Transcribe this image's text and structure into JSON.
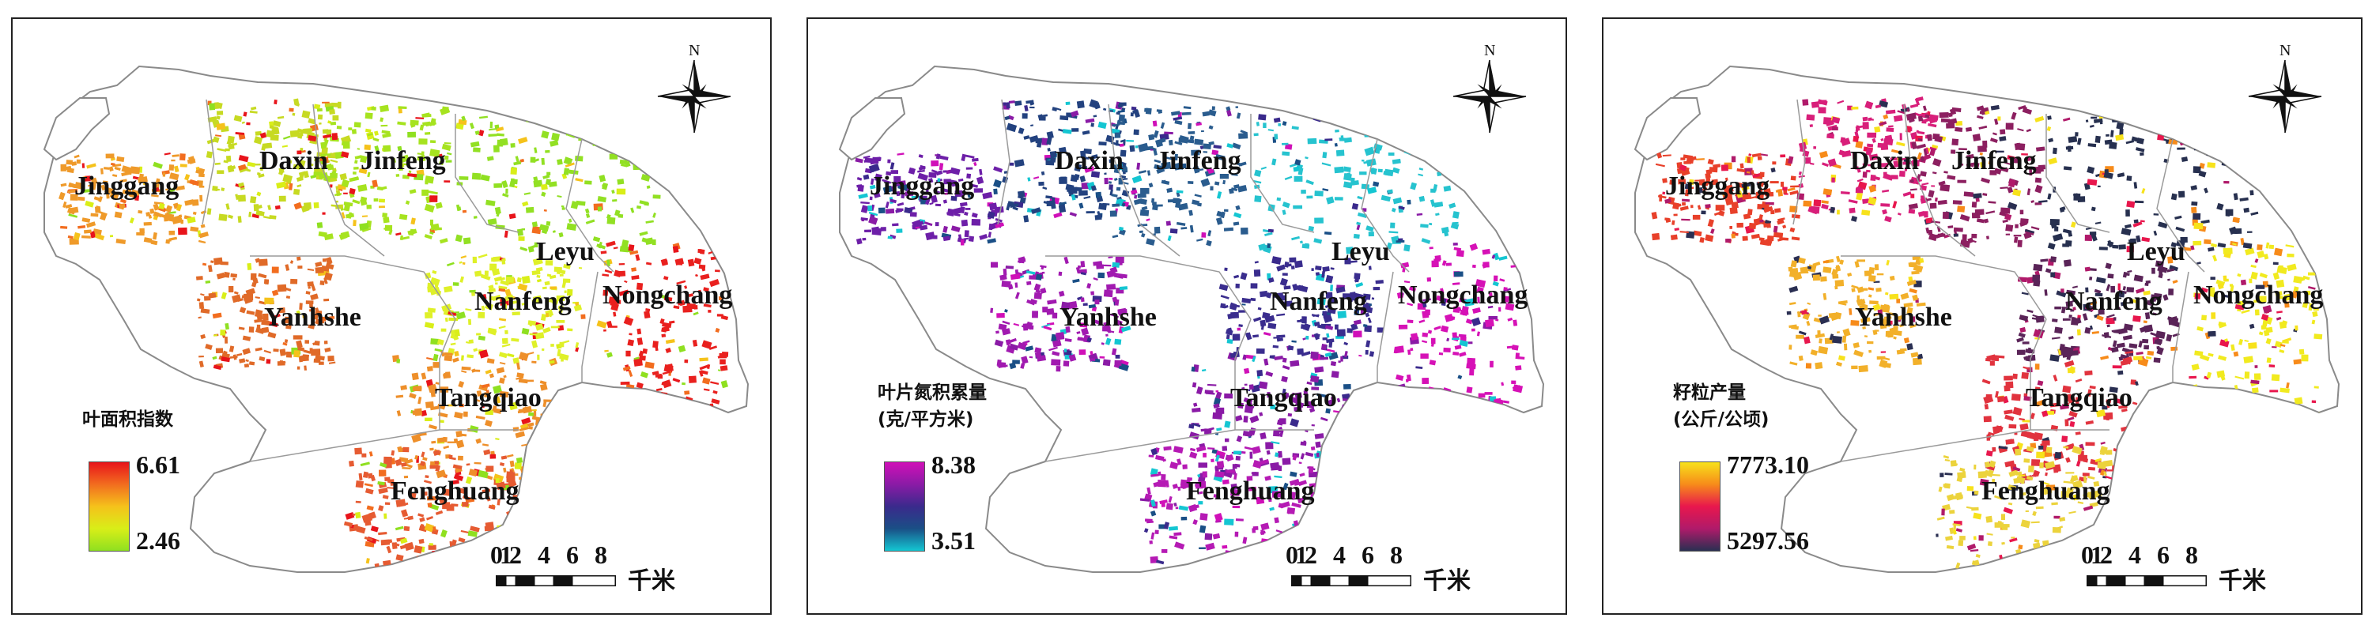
{
  "north_label": "N",
  "towns": [
    "Jinggang",
    "Daxin",
    "Jinfeng",
    "Leyu",
    "Yanhshe",
    "Nanfeng",
    "Nongchang",
    "Tangqiao",
    "Fenghuang"
  ],
  "scale_bar": {
    "ticks": [
      "0",
      "1",
      "2",
      "4",
      "6",
      "8"
    ],
    "unit": "千米"
  },
  "panels": [
    {
      "legend_title_lines": [
        "叶面积指数"
      ],
      "legend_max": "6.61",
      "legend_min": "2.46",
      "gradient_colors": [
        "#e8141b",
        "#f26d1f",
        "#f5c21b",
        "#d9ee18",
        "#8fe020"
      ],
      "town_colors": {
        "Jinggang": "#ef9a2a",
        "Daxin": "#c7da22",
        "Jinfeng": "#a6e31f",
        "Leyu": "#92e023",
        "Yanhshe": "#e06a28",
        "Nanfeng": "#dff028",
        "Nongchang": "#e9201e",
        "Tangqiao": "#ee8f2a",
        "Fenghuang": "#e65b32"
      }
    },
    {
      "legend_title_lines": [
        "叶片氮积累量",
        "(克/平方米)"
      ],
      "legend_max": "8.38",
      "legend_min": "3.51",
      "gradient_colors": [
        "#d010b8",
        "#8a1ba6",
        "#3a2a8c",
        "#1a4f86",
        "#14c6d2"
      ],
      "town_colors": {
        "Jinggang": "#6d1fa8",
        "Daxin": "#23427f",
        "Jinfeng": "#2a5c8e",
        "Leyu": "#26c3cf",
        "Yanhshe": "#a11ab0",
        "Nanfeng": "#3a2d8e",
        "Nongchang": "#d611b6",
        "Tangqiao": "#8a1aa6",
        "Fenghuang": "#b51ab4"
      }
    },
    {
      "legend_title_lines": [
        "籽粒产量",
        "(公斤/公顷)"
      ],
      "legend_max": "7773.10",
      "legend_min": "5297.56",
      "gradient_colors": [
        "#f7e21b",
        "#f78b1a",
        "#e8174d",
        "#b01a6a",
        "#2a2f52"
      ],
      "town_colors": {
        "Jinggang": "#e8402a",
        "Daxin": "#d81f7a",
        "Jinfeng": "#8c1f60",
        "Leyu": "#27304f",
        "Yanhshe": "#f2b02a",
        "Nanfeng": "#5a2458",
        "Nongchang": "#f1ea1f",
        "Tangqiao": "#e1333e",
        "Fenghuang": "#ecd33c"
      }
    }
  ]
}
